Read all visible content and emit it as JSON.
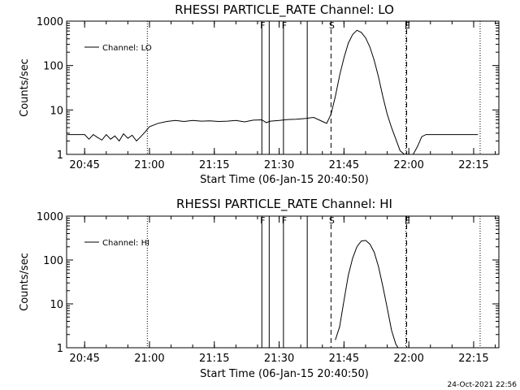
{
  "footer": {
    "timestamp": "24-Oct-2021 22:56"
  },
  "chart_data": [
    {
      "type": "line",
      "title": "RHESSI PARTICLE_RATE Channel: LO",
      "xlabel": "Start Time (06-Jan-15 20:40:50)",
      "ylabel": "Counts/sec",
      "yscale": "log",
      "ylim": [
        1,
        1000
      ],
      "xlim_minutes_from_start": [
        0,
        100
      ],
      "x_ticks": [
        "20:45",
        "21:00",
        "21:15",
        "21:30",
        "21:45",
        "22:00",
        "22:15"
      ],
      "y_ticks": [
        "1",
        "10",
        "100",
        "1000"
      ],
      "legend": {
        "position": "top-left",
        "entries": [
          "Channel: LO"
        ]
      },
      "markers": [
        {
          "label": "F",
          "time": "21:26",
          "style": "solid"
        },
        {
          "label": "",
          "time": "21:27.7",
          "style": "solid"
        },
        {
          "label": "F",
          "time": "21:31",
          "style": "solid"
        },
        {
          "label": "",
          "time": "21:36.5",
          "style": "solid"
        },
        {
          "label": "S",
          "time": "21:42",
          "style": "dashed"
        },
        {
          "label": "E",
          "time": "21:59.5",
          "style": "dashed"
        },
        {
          "label": "",
          "time": "21:59.3",
          "style": "dotted"
        },
        {
          "label": "",
          "time": "20:59.5",
          "style": "dotted"
        },
        {
          "label": "",
          "time": "22:16.5",
          "style": "dotted"
        }
      ],
      "series": [
        {
          "name": "Channel: LO",
          "x": [
            "20:41",
            "20:42",
            "20:43",
            "20:44",
            "20:45",
            "20:46",
            "20:47",
            "20:48",
            "20:49",
            "20:50",
            "20:51",
            "20:52",
            "20:53",
            "20:54",
            "20:55",
            "20:56",
            "20:57",
            "20:58",
            "20:59",
            "21:00",
            "21:02",
            "21:04",
            "21:06",
            "21:08",
            "21:10",
            "21:12",
            "21:14",
            "21:16",
            "21:18",
            "21:20",
            "21:22",
            "21:24",
            "21:26",
            "21:27",
            "21:28",
            "21:30",
            "21:32",
            "21:34",
            "21:36",
            "21:38",
            "21:40",
            "21:41",
            "21:42",
            "21:43",
            "21:44",
            "21:45",
            "21:46",
            "21:47",
            "21:48",
            "21:49",
            "21:50",
            "21:51",
            "21:52",
            "21:53",
            "21:54",
            "21:55",
            "21:56",
            "21:57",
            "21:58",
            "21:59",
            "22:00",
            "22:01",
            "22:02",
            "22:03",
            "22:04",
            "22:05",
            "22:06",
            "22:08",
            "22:10",
            "22:12",
            "22:14",
            "22:16"
          ],
          "y": [
            2.8,
            2.8,
            2.8,
            2.8,
            2.8,
            2.2,
            2.8,
            2.4,
            2.1,
            2.8,
            2.2,
            2.6,
            2.0,
            2.9,
            2.3,
            2.7,
            2.0,
            2.5,
            3.2,
            4.2,
            5.0,
            5.5,
            5.8,
            5.5,
            5.8,
            5.6,
            5.7,
            5.5,
            5.6,
            5.8,
            5.4,
            5.9,
            6.0,
            5.2,
            5.6,
            5.8,
            6.1,
            6.2,
            6.4,
            6.8,
            5.5,
            5.0,
            8.0,
            20,
            60,
            150,
            320,
            500,
            620,
            560,
            420,
            260,
            130,
            55,
            20,
            8.0,
            4.0,
            2.2,
            1.2,
            1.0,
            1.0,
            1.0,
            1.5,
            2.5,
            2.8,
            2.8,
            2.8,
            2.8,
            2.8,
            2.8,
            2.8,
            2.8
          ]
        }
      ]
    },
    {
      "type": "line",
      "title": "RHESSI PARTICLE_RATE Channel: HI",
      "xlabel": "Start Time (06-Jan-15 20:40:50)",
      "ylabel": "Counts/sec",
      "yscale": "log",
      "ylim": [
        1,
        1000
      ],
      "xlim_minutes_from_start": [
        0,
        100
      ],
      "x_ticks": [
        "20:45",
        "21:00",
        "21:15",
        "21:30",
        "21:45",
        "22:00",
        "22:15"
      ],
      "y_ticks": [
        "1",
        "10",
        "100",
        "1000"
      ],
      "legend": {
        "position": "top-left",
        "entries": [
          "Channel: HI"
        ]
      },
      "markers": [
        {
          "label": "F",
          "time": "21:26",
          "style": "solid"
        },
        {
          "label": "",
          "time": "21:27.7",
          "style": "solid"
        },
        {
          "label": "F",
          "time": "21:31",
          "style": "solid"
        },
        {
          "label": "",
          "time": "21:36.5",
          "style": "solid"
        },
        {
          "label": "S",
          "time": "21:42",
          "style": "dashed"
        },
        {
          "label": "E",
          "time": "21:59.5",
          "style": "dashed"
        },
        {
          "label": "",
          "time": "21:59.3",
          "style": "dotted"
        },
        {
          "label": "",
          "time": "20:59.5",
          "style": "dotted"
        },
        {
          "label": "",
          "time": "22:16.5",
          "style": "dotted"
        }
      ],
      "series": [
        {
          "name": "Channel: HI",
          "x": [
            "21:43",
            "21:44",
            "21:45",
            "21:46",
            "21:47",
            "21:48",
            "21:49",
            "21:50",
            "21:51",
            "21:52",
            "21:53",
            "21:54",
            "21:55",
            "21:56",
            "21:57",
            "21:57.5"
          ],
          "y": [
            1.5,
            3.0,
            12,
            45,
            110,
            200,
            270,
            280,
            230,
            150,
            70,
            25,
            8,
            2.5,
            1.2,
            1.0
          ]
        }
      ]
    }
  ]
}
